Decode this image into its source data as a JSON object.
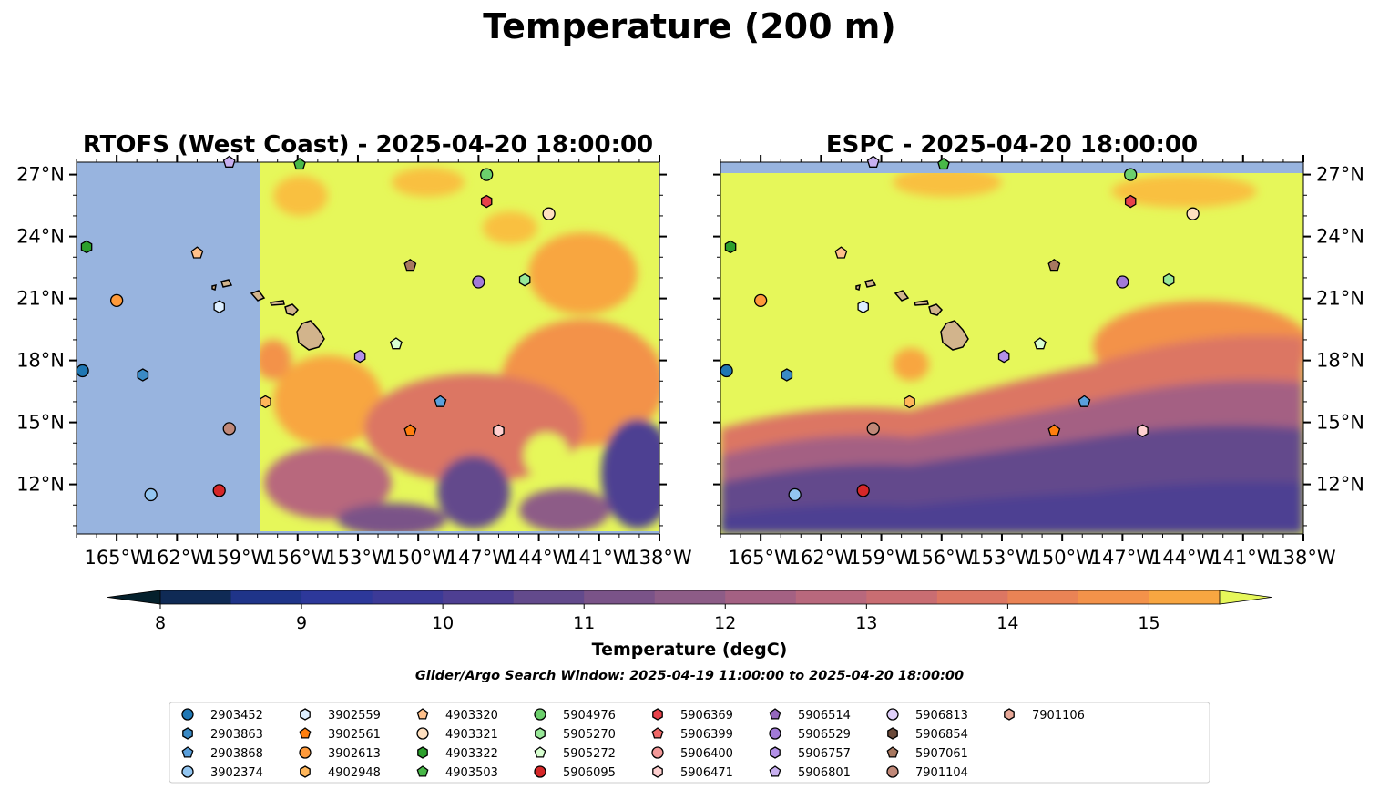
{
  "figure_title": "Temperature (200 m)",
  "colorbar": {
    "label": "Temperature (degC)",
    "ticks": [
      "8",
      "9",
      "10",
      "11",
      "12",
      "13",
      "14",
      "15"
    ],
    "levels": [
      8.0,
      8.5,
      9.0,
      9.5,
      10.0,
      10.5,
      11.0,
      11.5,
      12.0,
      12.5,
      13.0,
      13.5,
      14.0,
      14.5,
      15.0,
      15.5
    ],
    "colors": [
      "#04202c",
      "#0f2a55",
      "#1f3489",
      "#2d389a",
      "#3c3a97",
      "#4e3f92",
      "#634a8c",
      "#7a5388",
      "#8d5c87",
      "#a46183",
      "#b8687d",
      "#c96d72",
      "#dc7663",
      "#ea8355",
      "#f3924a",
      "#f8a641",
      "#f9c03f",
      "#f5d949"
    ],
    "under_color": "#04202c",
    "over_color": "#e6f75a"
  },
  "search_window": "Glider/Argo Search Window: 2025-04-19 11:00:00 to 2025-04-20 18:00:00",
  "chart_data": [
    {
      "type": "heatmap",
      "title": "RTOFS (West Coast) - 2025-04-20 18:00:00",
      "variable": "Temperature at 200 m (degC)",
      "x_range": [
        -167,
        -138
      ],
      "y_range": [
        9.6,
        27.6
      ],
      "x_ticks": [
        "165°W",
        "162°W",
        "159°W",
        "156°W",
        "153°W",
        "150°W",
        "147°W",
        "144°W",
        "141°W",
        "138°W"
      ],
      "y_ticks": [
        "27°N",
        "24°N",
        "21°N",
        "18°N",
        "15°N",
        "12°N"
      ],
      "no_data_west_of": -157.9,
      "no_data_color": "#98b4df",
      "summary": "Mostly >15.5 degC north of ~17N; cooler 10-14 degC tongues south of 17N and east of 150W"
    },
    {
      "type": "heatmap",
      "title": "ESPC - 2025-04-20 18:00:00",
      "variable": "Temperature at 200 m (degC)",
      "x_range": [
        -167,
        -138
      ],
      "y_range": [
        9.6,
        27.6
      ],
      "x_ticks": [
        "165°W",
        "162°W",
        "159°W",
        "156°W",
        "153°W",
        "150°W",
        "147°W",
        "144°W",
        "141°W",
        "138°W"
      ],
      "y_ticks": [
        "27°N",
        "24°N",
        "21°N",
        "18°N",
        "15°N",
        "12°N"
      ],
      "no_data_north_of": 27.1,
      "no_data_color": "#98b4df",
      "summary": "Mostly >15.5 degC north of ~16N; gradient to 10-11 degC in south-east"
    }
  ],
  "floats": [
    {
      "id": "2903452",
      "lon": -166.7,
      "lat": 17.5,
      "marker": "circle",
      "color": "#1f77b4"
    },
    {
      "id": "2903863",
      "lon": -163.7,
      "lat": 17.3,
      "marker": "hexagon",
      "color": "#3a8ac5"
    },
    {
      "id": "2903868",
      "lon": -148.9,
      "lat": 16.0,
      "marker": "pentagon",
      "color": "#5aa0dc"
    },
    {
      "id": "3902374",
      "lon": -163.3,
      "lat": 11.5,
      "marker": "circle",
      "color": "#92c5f0"
    },
    {
      "id": "3902559",
      "lon": -159.9,
      "lat": 20.6,
      "marker": "hexagon",
      "color": "#dceeff"
    },
    {
      "id": "3902561",
      "lon": -150.4,
      "lat": 14.6,
      "marker": "pentagon",
      "color": "#ff7f0e"
    },
    {
      "id": "3902613",
      "lon": -165.0,
      "lat": 20.9,
      "marker": "circle",
      "color": "#ff9a3a"
    },
    {
      "id": "4902948",
      "lon": -157.6,
      "lat": 16.0,
      "marker": "hexagon",
      "color": "#ffb65a"
    },
    {
      "id": "4903320",
      "lon": -161.0,
      "lat": 23.2,
      "marker": "pentagon",
      "color": "#ffc08a"
    },
    {
      "id": "4903321",
      "lon": -143.5,
      "lat": 25.1,
      "marker": "circle",
      "color": "#ffe0c0"
    },
    {
      "id": "4903322",
      "lon": -166.5,
      "lat": 23.5,
      "marker": "hexagon",
      "color": "#2ca02c"
    },
    {
      "id": "4903503",
      "lon": -155.9,
      "lat": 27.5,
      "marker": "pentagon",
      "color": "#48b848"
    },
    {
      "id": "5904976",
      "lon": -146.6,
      "lat": 27.0,
      "marker": "circle",
      "color": "#6cd06c"
    },
    {
      "id": "5905270",
      "lon": -144.7,
      "lat": 21.9,
      "marker": "hexagon",
      "color": "#98e898"
    },
    {
      "id": "5905272",
      "lon": -151.1,
      "lat": 18.8,
      "marker": "pentagon",
      "color": "#d8ffd0"
    },
    {
      "id": "5906095",
      "lon": -159.9,
      "lat": 11.7,
      "marker": "circle",
      "color": "#d62728"
    },
    {
      "id": "5906369",
      "lon": -146.6,
      "lat": 25.7,
      "marker": "hexagon",
      "color": "#e8414a"
    },
    {
      "id": "5906399",
      "lon": null,
      "lat": null,
      "marker": "pentagon",
      "color": "#f06868"
    },
    {
      "id": "5906400",
      "lon": null,
      "lat": null,
      "marker": "circle",
      "color": "#f29898"
    },
    {
      "id": "5906471",
      "lon": -146.0,
      "lat": 14.6,
      "marker": "hexagon",
      "color": "#ffd0d0"
    },
    {
      "id": "5906514",
      "lon": null,
      "lat": null,
      "marker": "pentagon",
      "color": "#9467bd"
    },
    {
      "id": "5906529",
      "lon": -147.0,
      "lat": 21.8,
      "marker": "circle",
      "color": "#a27ad8"
    },
    {
      "id": "5906757",
      "lon": -152.9,
      "lat": 18.2,
      "marker": "hexagon",
      "color": "#b390e8"
    },
    {
      "id": "5906801",
      "lon": -159.4,
      "lat": 27.6,
      "marker": "pentagon",
      "color": "#c8b0f0"
    },
    {
      "id": "5906813",
      "lon": null,
      "lat": null,
      "marker": "circle",
      "color": "#e0d0fa"
    },
    {
      "id": "5906854",
      "lon": null,
      "lat": null,
      "marker": "hexagon",
      "color": "#6b4a3a"
    },
    {
      "id": "5907061",
      "lon": -150.4,
      "lat": 22.6,
      "marker": "pentagon",
      "color": "#a87860"
    },
    {
      "id": "7901104",
      "lon": -159.4,
      "lat": 14.7,
      "marker": "circle",
      "color": "#c08878"
    },
    {
      "id": "7901106",
      "lon": null,
      "lat": null,
      "marker": "hexagon",
      "color": "#e8a898"
    }
  ]
}
